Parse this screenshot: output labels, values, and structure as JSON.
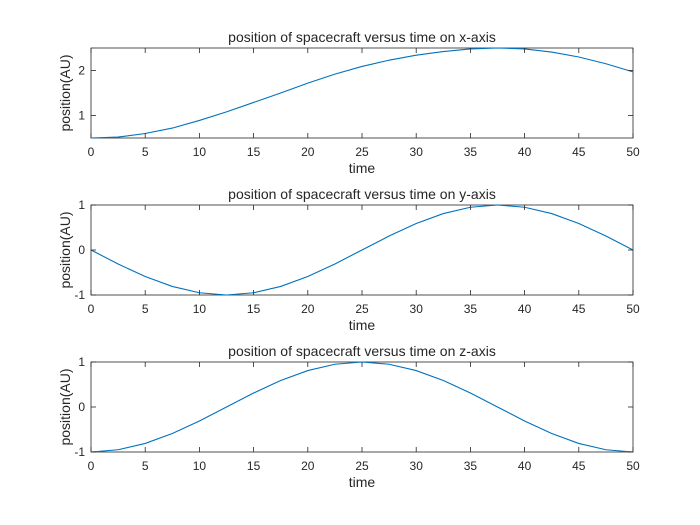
{
  "chart_data": [
    {
      "type": "line",
      "title": "position of spacecraft versus time on x-axis",
      "xlabel": "time",
      "ylabel": "position(AU)",
      "xlim": [
        0,
        50
      ],
      "ylim": [
        0.5,
        2.5
      ],
      "xticks": [
        0,
        5,
        10,
        15,
        20,
        25,
        30,
        35,
        40,
        45,
        50
      ],
      "yticks": [
        1,
        2
      ],
      "grid": false,
      "series": [
        {
          "color": "#0072BD",
          "x": [
            0,
            2.5,
            5,
            7.5,
            10,
            12.5,
            15,
            17.5,
            20,
            22.5,
            25,
            27.5,
            30,
            32.5,
            35,
            37.5,
            40,
            42.5,
            45,
            47.5,
            50
          ],
          "y": [
            0.5,
            0.52,
            0.6,
            0.72,
            0.89,
            1.08,
            1.29,
            1.5,
            1.72,
            1.92,
            2.09,
            2.23,
            2.34,
            2.42,
            2.48,
            2.5,
            2.48,
            2.41,
            2.3,
            2.15,
            1.97
          ]
        }
      ]
    },
    {
      "type": "line",
      "title": "position of spacecraft versus time on y-axis",
      "xlabel": "time",
      "ylabel": "position(AU)",
      "xlim": [
        0,
        50
      ],
      "ylim": [
        -1,
        1
      ],
      "xticks": [
        0,
        5,
        10,
        15,
        20,
        25,
        30,
        35,
        40,
        45,
        50
      ],
      "yticks": [
        -1,
        0,
        1
      ],
      "grid": false,
      "series": [
        {
          "color": "#0072BD",
          "x": [
            0,
            2.5,
            5,
            7.5,
            10,
            12.5,
            15,
            17.5,
            20,
            22.5,
            25,
            27.5,
            30,
            32.5,
            35,
            37.5,
            40,
            42.5,
            45,
            47.5,
            50
          ],
          "y": [
            0.0,
            -0.31,
            -0.59,
            -0.81,
            -0.95,
            -1.0,
            -0.95,
            -0.81,
            -0.59,
            -0.31,
            0.0,
            0.31,
            0.59,
            0.81,
            0.95,
            1.0,
            0.95,
            0.81,
            0.59,
            0.31,
            0.0
          ]
        }
      ]
    },
    {
      "type": "line",
      "title": "position of spacecraft versus time on z-axis",
      "xlabel": "time",
      "ylabel": "position(AU)",
      "xlim": [
        0,
        50
      ],
      "ylim": [
        -1,
        1
      ],
      "xticks": [
        0,
        5,
        10,
        15,
        20,
        25,
        30,
        35,
        40,
        45,
        50
      ],
      "yticks": [
        -1,
        0,
        1
      ],
      "grid": false,
      "series": [
        {
          "color": "#0072BD",
          "x": [
            0,
            2.5,
            5,
            7.5,
            10,
            12.5,
            15,
            17.5,
            20,
            22.5,
            25,
            27.5,
            30,
            32.5,
            35,
            37.5,
            40,
            42.5,
            45,
            47.5,
            50
          ],
          "y": [
            -1.0,
            -0.95,
            -0.81,
            -0.59,
            -0.31,
            0.0,
            0.31,
            0.59,
            0.81,
            0.95,
            1.0,
            0.95,
            0.81,
            0.59,
            0.31,
            0.0,
            -0.31,
            -0.59,
            -0.81,
            -0.95,
            -1.0
          ]
        }
      ]
    }
  ]
}
